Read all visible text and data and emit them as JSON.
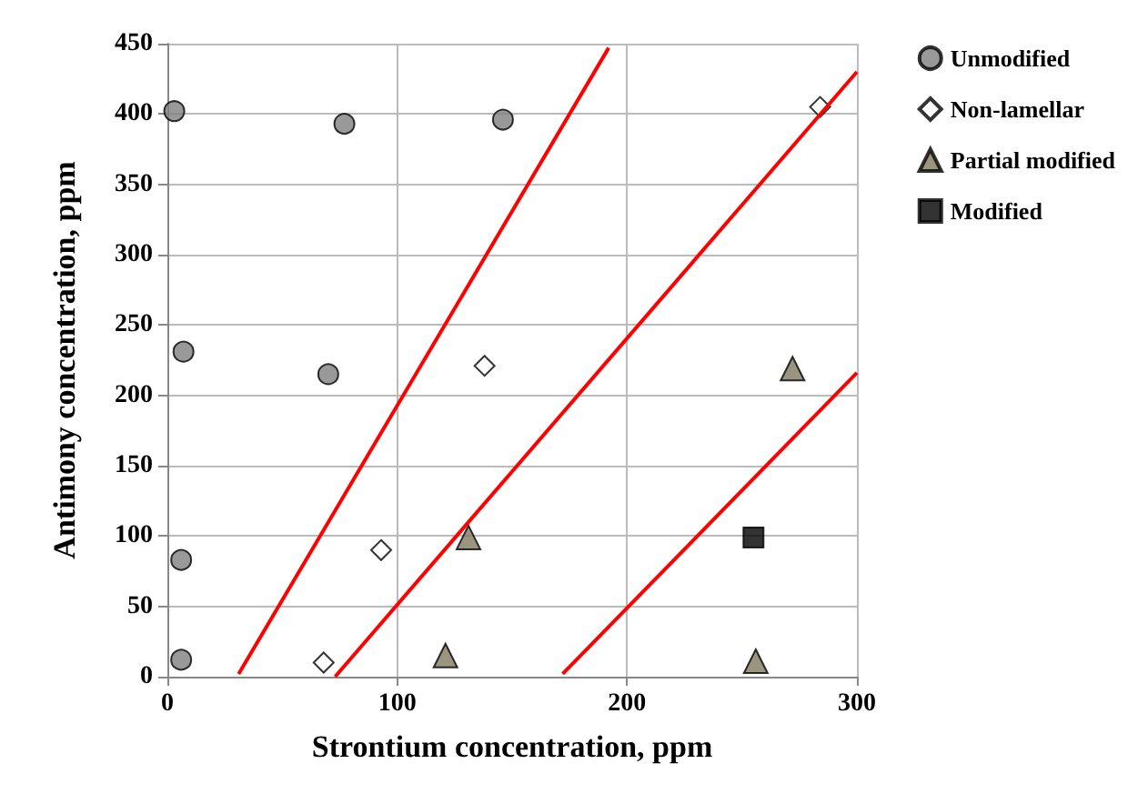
{
  "chart_data": {
    "type": "scatter",
    "xlabel": "Strontium concentration, ppm",
    "ylabel": "Antimony concentration, ppm",
    "xlim": [
      0,
      300
    ],
    "xticks": [
      0,
      100,
      200,
      300
    ],
    "ylim": [
      0,
      450
    ],
    "yticks": [
      0,
      50,
      100,
      150,
      200,
      250,
      300,
      350,
      400,
      450
    ],
    "grid": true,
    "legend": "right",
    "series": [
      {
        "name": "Unmodified",
        "color": "#808080",
        "marker": "circle",
        "x": [
          3,
          77,
          146,
          7,
          70,
          6,
          6
        ],
        "values": [
          402,
          393,
          396,
          231,
          215,
          83,
          12
        ]
      },
      {
        "name": "Non-lamellar",
        "color": "#ffffff",
        "marker": "diamond",
        "x": [
          284,
          138,
          93,
          68
        ],
        "values": [
          405,
          221,
          90,
          10
        ]
      },
      {
        "name": "Partial modified",
        "color": "#7f7a5e",
        "marker": "triangle",
        "x": [
          272,
          131,
          121,
          256
        ],
        "values": [
          219,
          99,
          15,
          11
        ]
      },
      {
        "name": "Modified",
        "color": "#000000",
        "marker": "square",
        "x": [
          255
        ],
        "values": [
          99
        ]
      },
      {
        "type": "line",
        "color": "#ff0000",
        "marker": "none",
        "x": [
          31,
          192
        ],
        "values": [
          2,
          447
        ]
      },
      {
        "type": "line",
        "color": "#ff0000",
        "marker": "none",
        "x": [
          73,
          300
        ],
        "values": [
          0,
          430
        ]
      },
      {
        "type": "line",
        "color": "#ff0000",
        "marker": "none",
        "x": [
          172,
          300
        ],
        "values": [
          2,
          216
        ]
      }
    ]
  }
}
